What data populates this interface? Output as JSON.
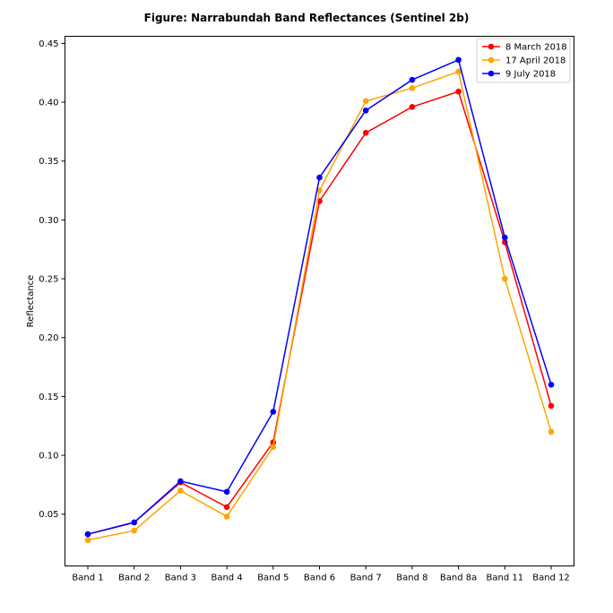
{
  "chart_data": {
    "type": "line",
    "title": "Figure: Narrabundah Band Reflectances (Sentinel 2b)",
    "xlabel": "",
    "ylabel": "Reflectance",
    "categories": [
      "Band 1",
      "Band 2",
      "Band 3",
      "Band 4",
      "Band 5",
      "Band 6",
      "Band 7",
      "Band 8",
      "Band 8a",
      "Band 11",
      "Band 12"
    ],
    "ylim": [
      0.006,
      0.456
    ],
    "yticks": [
      "0.05",
      "0.10",
      "0.15",
      "0.20",
      "0.25",
      "0.30",
      "0.35",
      "0.40",
      "0.45"
    ],
    "grid": false,
    "legend_position": "top-right",
    "series": [
      {
        "name": "8 March 2018",
        "color": "#ff0000",
        "values": [
          0.033,
          0.043,
          0.077,
          0.056,
          0.111,
          0.316,
          0.374,
          0.396,
          0.409,
          0.281,
          0.142
        ]
      },
      {
        "name": "17 April 2018",
        "color": "#ffa500",
        "values": [
          0.028,
          0.036,
          0.07,
          0.048,
          0.107,
          0.325,
          0.401,
          0.412,
          0.426,
          0.25,
          0.12
        ]
      },
      {
        "name": "9 July 2018",
        "color": "#0000ff",
        "values": [
          0.033,
          0.043,
          0.078,
          0.069,
          0.137,
          0.336,
          0.393,
          0.419,
          0.436,
          0.285,
          0.16
        ]
      }
    ]
  }
}
